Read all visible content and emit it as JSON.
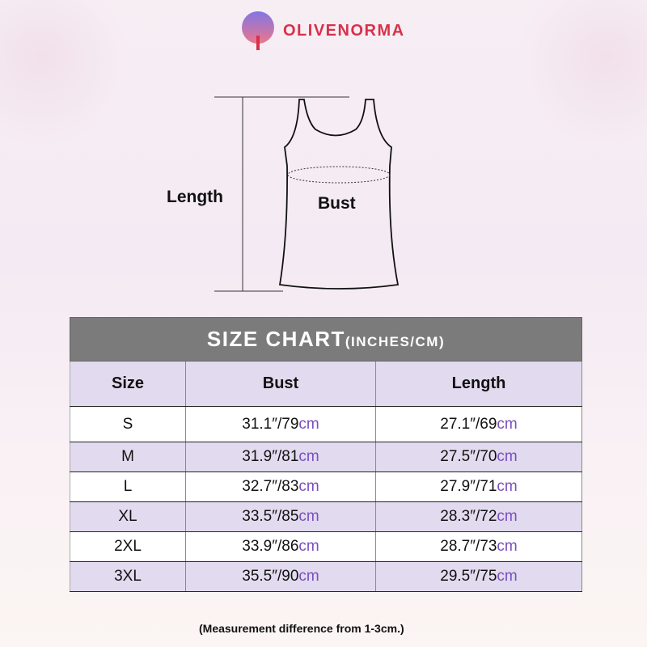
{
  "brand": {
    "name": "OLIVENORMA",
    "logo_icon": "tree-icon",
    "color": "#d9304a"
  },
  "diagram": {
    "length_label": "Length",
    "bust_label": "Bust"
  },
  "table": {
    "title": "SIZE CHART",
    "title_units": "(INCHES/CM)",
    "headers": [
      "Size",
      "Bust",
      "Length"
    ],
    "rows": [
      {
        "size": "S",
        "bust_in": "31.1″/79",
        "bust_cm": "cm",
        "length_in": "27.1″/69",
        "length_cm": "cm"
      },
      {
        "size": "M",
        "bust_in": "31.9″/81",
        "bust_cm": "cm",
        "length_in": "27.5″/70",
        "length_cm": "cm"
      },
      {
        "size": "L",
        "bust_in": "32.7″/83",
        "bust_cm": "cm",
        "length_in": "27.9″/71",
        "length_cm": "cm"
      },
      {
        "size": "XL",
        "bust_in": "33.5″/85",
        "bust_cm": "cm",
        "length_in": "28.3″/72",
        "length_cm": "cm"
      },
      {
        "size": "2XL",
        "bust_in": "33.9″/86",
        "bust_cm": "cm",
        "length_in": "28.7″/73",
        "length_cm": "cm"
      },
      {
        "size": "3XL",
        "bust_in": "35.5″/90",
        "bust_cm": "cm",
        "length_in": "29.5″/75",
        "length_cm": "cm"
      }
    ],
    "colors": {
      "title_bg": "#7b7b7b",
      "alt_row": "#e2daee",
      "cm_text": "#7a4fbf"
    }
  },
  "note": "(Measurement difference from 1-3cm.)"
}
